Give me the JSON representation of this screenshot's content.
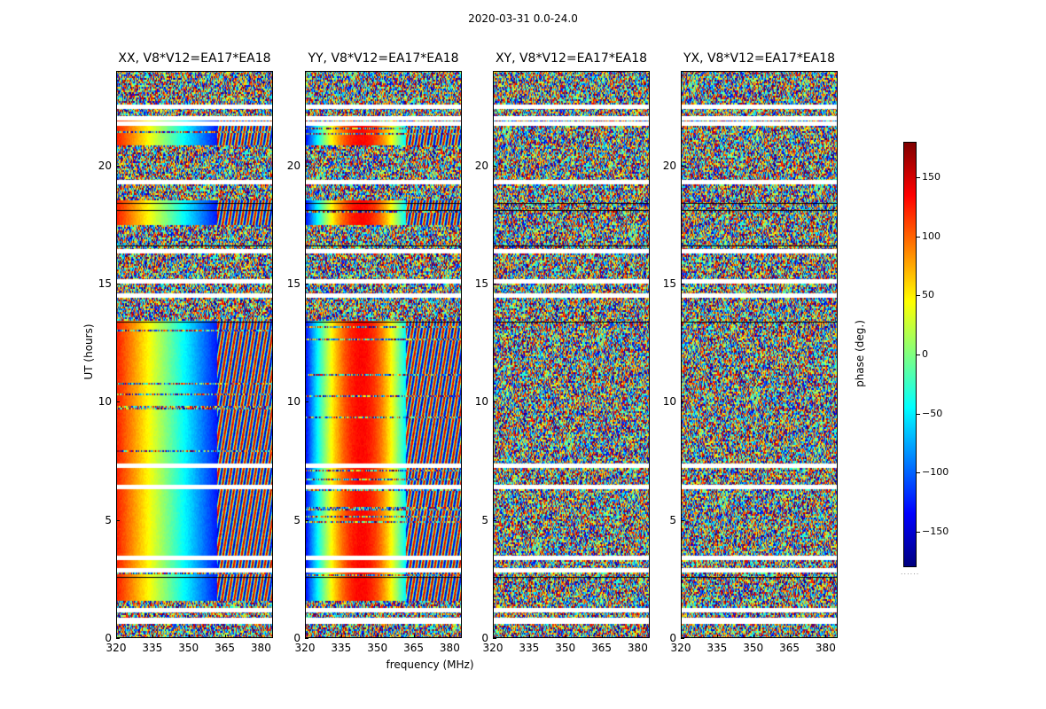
{
  "suptitle": "2020-03-31 0.0-24.0",
  "chart_data": {
    "type": "heatmap",
    "panels": [
      {
        "title": "XX, V8*V12=EA17*EA18",
        "pattern": "smooth_phase_slope_positive"
      },
      {
        "title": "YY, V8*V12=EA17*EA18",
        "pattern": "smooth_phase_slope_negative"
      },
      {
        "title": "XY, V8*V12=EA17*EA18",
        "pattern": "noise"
      },
      {
        "title": "YX, V8*V12=EA17*EA18",
        "pattern": "noise"
      }
    ],
    "xlabel": "frequency (MHz)",
    "ylabel": "UT (hours)",
    "xlim": [
      320,
      385
    ],
    "ylim": [
      0,
      24
    ],
    "xticks": [
      "320",
      "335",
      "350",
      "365",
      "380"
    ],
    "yticks": [
      "0",
      "5",
      "10",
      "15",
      "20"
    ],
    "colorbar": {
      "label": "phase (deg.)",
      "range": [
        -180,
        180
      ],
      "ticks": [
        "150",
        "100",
        "50",
        "0",
        "−50",
        "−100",
        "−150"
      ],
      "tick_values": [
        150,
        100,
        50,
        0,
        -50,
        -100,
        -150
      ],
      "colormap": "jet"
    },
    "flagged_rows_hours": [
      0.7,
      0.8,
      1.2,
      2.9,
      3.4,
      6.4,
      7.3,
      14.5,
      15.1,
      16.4,
      19.3,
      21.8,
      22.0,
      22.5
    ]
  },
  "colorbar_footer": "......"
}
